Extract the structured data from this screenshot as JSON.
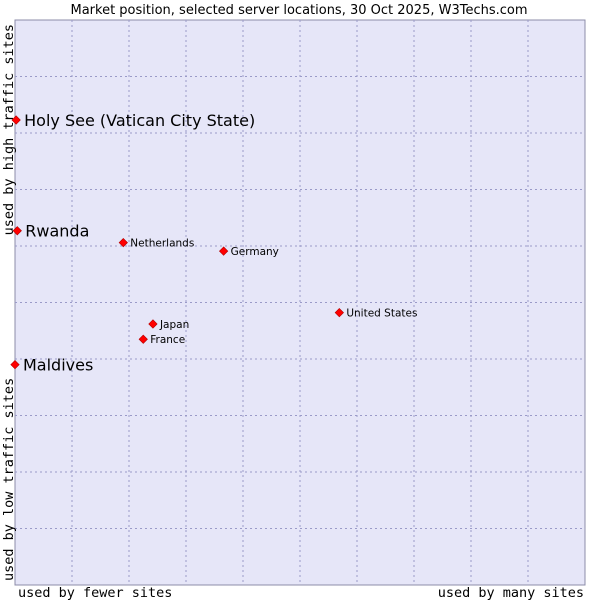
{
  "chart_data": {
    "type": "scatter",
    "title": "Market position, selected server locations, 30 Oct 2025, W3Techs.com",
    "xlabel_left": "used by fewer sites",
    "xlabel_right": "used by many sites",
    "ylabel_top": "used by high traffic sites",
    "ylabel_bottom": "used by low traffic sites",
    "xlim": [
      0,
      100
    ],
    "ylim": [
      0,
      100
    ],
    "grid": true,
    "colors": {
      "plot_bg": "#e6e6f8",
      "marker": "#ff0000",
      "grid": "#9a9ac8"
    },
    "points": [
      {
        "label": "Holy See (Vatican City State)",
        "x": 0.2,
        "y": 82.3,
        "size": "large"
      },
      {
        "label": "Rwanda",
        "x": 0.4,
        "y": 62.7,
        "size": "large"
      },
      {
        "label": "Maldives",
        "x": 0.0,
        "y": 39.0,
        "size": "large"
      },
      {
        "label": "Netherlands",
        "x": 19.0,
        "y": 60.6,
        "size": "small"
      },
      {
        "label": "Germany",
        "x": 36.6,
        "y": 59.1,
        "size": "small"
      },
      {
        "label": "United States",
        "x": 56.9,
        "y": 48.2,
        "size": "small"
      },
      {
        "label": "Japan",
        "x": 24.2,
        "y": 46.2,
        "size": "small"
      },
      {
        "label": "France",
        "x": 22.5,
        "y": 43.5,
        "size": "small"
      }
    ]
  }
}
